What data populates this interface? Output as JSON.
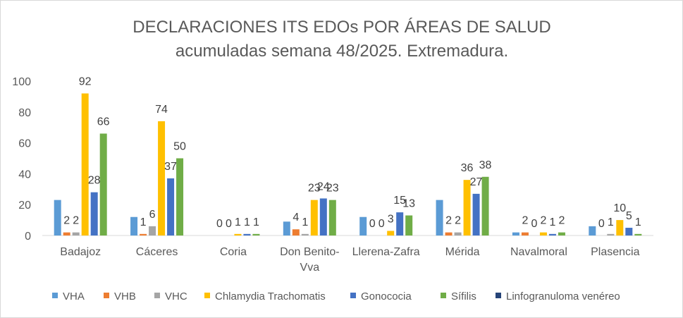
{
  "chart_data": {
    "type": "bar",
    "title": "DECLARACIONES ITS EDOs POR ÁREAS DE SALUD",
    "subtitle": "acumuladas semana 48/2025. Extremadura.",
    "categories": [
      [
        "Badajoz"
      ],
      [
        "Cáceres"
      ],
      [
        "Coria"
      ],
      [
        "Don Benito-",
        "Vva"
      ],
      [
        "Llerena-Zafra"
      ],
      [
        "Mérida"
      ],
      [
        "Navalmoral"
      ],
      [
        "Plasencia"
      ]
    ],
    "ylim": [
      0,
      100
    ],
    "yticks": [
      0,
      20,
      40,
      60,
      80,
      100
    ],
    "grid": false,
    "legend_position": "bottom",
    "series": [
      {
        "name": "VHA",
        "color": "#5B9BD5",
        "values": [
          23,
          12,
          0,
          9,
          12,
          23,
          2,
          6
        ],
        "labels": [
          null,
          null,
          null,
          null,
          null,
          null,
          null,
          null
        ]
      },
      {
        "name": "VHB",
        "color": "#ED7D31",
        "values": [
          2,
          1,
          0,
          4,
          0,
          2,
          2,
          0
        ],
        "labels": [
          "2",
          "1",
          "0",
          "4",
          "0",
          "2",
          "2",
          "0"
        ]
      },
      {
        "name": "VHC",
        "color": "#A5A5A5",
        "values": [
          2,
          6,
          0,
          1,
          0,
          2,
          0,
          1
        ],
        "labels": [
          "2",
          "6",
          "0",
          "1",
          "0",
          "2",
          "0",
          "1"
        ]
      },
      {
        "name": "Chlamydia Trachomatis",
        "color": "#FFC000",
        "values": [
          92,
          74,
          1,
          23,
          3,
          36,
          2,
          10
        ],
        "labels": [
          "92",
          "74",
          "1",
          "23",
          "3",
          "36",
          "2",
          "10"
        ]
      },
      {
        "name": "Gonococia",
        "color": "#4472C4",
        "values": [
          28,
          37,
          1,
          24,
          15,
          27,
          1,
          5
        ],
        "labels": [
          "28",
          "37",
          "1",
          "24",
          "15",
          "27",
          "1",
          "5"
        ]
      },
      {
        "name": "Sífilis",
        "color": "#70AD47",
        "values": [
          66,
          50,
          1,
          23,
          13,
          38,
          2,
          1
        ],
        "labels": [
          "66",
          "50",
          "1",
          "23",
          "13",
          "38",
          "2",
          "1"
        ]
      },
      {
        "name": "Linfogranuloma venéreo",
        "color": "#264478",
        "values": [
          null,
          null,
          null,
          null,
          null,
          null,
          null,
          null
        ],
        "labels": [
          null,
          null,
          null,
          null,
          null,
          null,
          null,
          null
        ]
      }
    ]
  }
}
